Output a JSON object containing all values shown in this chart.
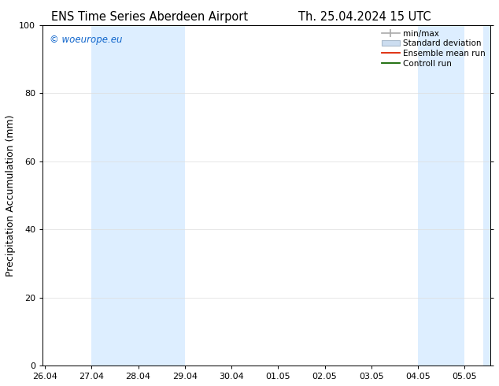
{
  "title_left": "ENS Time Series Aberdeen Airport",
  "title_right": "Th. 25.04.2024 15 UTC",
  "ylabel": "Precipitation Accumulation (mm)",
  "ylim": [
    0,
    100
  ],
  "yticks": [
    0,
    20,
    40,
    60,
    80,
    100
  ],
  "watermark": "© woeurope.eu",
  "watermark_color": "#1166cc",
  "x_tick_labels": [
    "26.04",
    "27.04",
    "28.04",
    "29.04",
    "30.04",
    "01.05",
    "02.05",
    "03.05",
    "04.05",
    "05.05"
  ],
  "x_tick_positions": [
    0,
    1,
    2,
    3,
    4,
    5,
    6,
    7,
    8,
    9
  ],
  "x_min": -0.05,
  "x_max": 9.55,
  "shaded_bands": [
    {
      "x_start": 1.0,
      "x_end": 3.0,
      "color": "#ddeeff"
    },
    {
      "x_start": 8.0,
      "x_end": 9.0,
      "color": "#ddeeff"
    },
    {
      "x_start": 9.4,
      "x_end": 9.55,
      "color": "#ddeeff"
    }
  ],
  "background_color": "#ffffff",
  "plot_bg_color": "#ffffff",
  "border_color": "#000000",
  "grid_color": "#dddddd",
  "title_fontsize": 10.5,
  "axis_fontsize": 9,
  "tick_fontsize": 8
}
